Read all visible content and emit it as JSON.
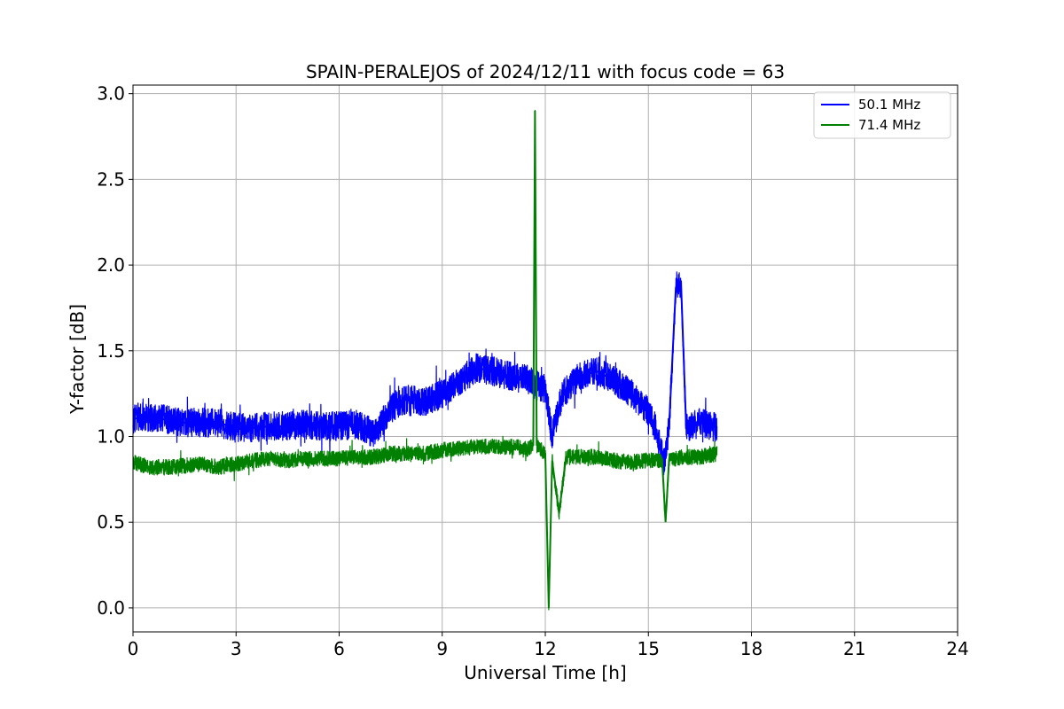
{
  "chart_data": {
    "type": "line",
    "title": "SPAIN-PERALEJOS of 2024/12/11 with focus code = 63",
    "xlabel": "Universal Time [h]",
    "ylabel": "Y-factor [dB]",
    "xlim": [
      0,
      24
    ],
    "ylim": [
      -0.14,
      3.05
    ],
    "xticks": [
      0,
      3,
      6,
      9,
      12,
      15,
      18,
      21,
      24
    ],
    "xtick_labels": [
      "0",
      "3",
      "6",
      "9",
      "12",
      "15",
      "18",
      "21",
      "24"
    ],
    "yticks": [
      0.0,
      0.5,
      1.0,
      1.5,
      2.0,
      2.5,
      3.0
    ],
    "ytick_labels": [
      "0.0",
      "0.5",
      "1.0",
      "1.5",
      "2.0",
      "2.5",
      "3.0"
    ],
    "grid": true,
    "legend_position": "upper-right",
    "series": [
      {
        "name": "50.1 MHz",
        "color": "#0000ff",
        "x": [
          0.0,
          0.3,
          0.6,
          1.0,
          1.5,
          2.0,
          2.5,
          3.0,
          3.5,
          4.0,
          4.5,
          5.0,
          5.5,
          6.0,
          6.5,
          7.0,
          7.3,
          7.6,
          8.0,
          8.5,
          9.0,
          9.5,
          10.0,
          10.5,
          11.0,
          11.5,
          11.7,
          12.0,
          12.2,
          12.5,
          13.0,
          13.5,
          14.0,
          14.5,
          15.0,
          15.2,
          15.45,
          15.6,
          15.8,
          15.95,
          16.1,
          16.5,
          17.0
        ],
        "y": [
          1.1,
          1.12,
          1.1,
          1.1,
          1.08,
          1.08,
          1.08,
          1.05,
          1.05,
          1.06,
          1.06,
          1.07,
          1.06,
          1.06,
          1.07,
          1.02,
          1.1,
          1.18,
          1.22,
          1.2,
          1.25,
          1.32,
          1.4,
          1.38,
          1.35,
          1.33,
          1.3,
          1.28,
          1.0,
          1.25,
          1.35,
          1.38,
          1.33,
          1.25,
          1.15,
          1.05,
          0.85,
          1.05,
          1.87,
          1.9,
          1.05,
          1.08,
          1.05
        ]
      },
      {
        "name": "71.4 MHz",
        "color": "#008000",
        "x": [
          0.0,
          0.5,
          1.0,
          1.5,
          2.0,
          2.5,
          3.0,
          3.5,
          4.0,
          4.5,
          5.0,
          5.5,
          6.0,
          6.5,
          7.0,
          7.5,
          8.0,
          8.5,
          9.0,
          9.5,
          10.0,
          10.5,
          11.0,
          11.5,
          11.65,
          11.7,
          11.75,
          12.0,
          12.1,
          12.2,
          12.4,
          12.6,
          13.0,
          13.5,
          14.0,
          14.5,
          15.0,
          15.4,
          15.5,
          15.6,
          16.0,
          16.5,
          17.0
        ],
        "y": [
          0.85,
          0.82,
          0.82,
          0.83,
          0.84,
          0.82,
          0.84,
          0.86,
          0.87,
          0.86,
          0.87,
          0.87,
          0.87,
          0.88,
          0.88,
          0.9,
          0.9,
          0.9,
          0.92,
          0.93,
          0.94,
          0.94,
          0.94,
          0.93,
          0.95,
          2.9,
          0.95,
          0.9,
          0.0,
          0.86,
          0.55,
          0.88,
          0.88,
          0.88,
          0.86,
          0.85,
          0.86,
          0.86,
          0.5,
          0.86,
          0.88,
          0.88,
          0.9
        ]
      }
    ]
  }
}
